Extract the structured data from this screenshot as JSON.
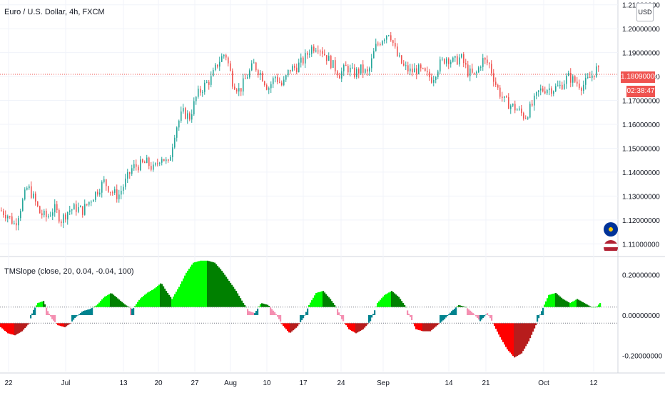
{
  "chart": {
    "title": "Euro / U.S. Dollar, 4h, FXCM",
    "currency": "USD",
    "last_price": "1.18090000",
    "countdown": "02:38:47",
    "price_ticks": [
      "1.21000000",
      "1.20000000",
      "1.19000000",
      "1.18000000",
      "1.17000000",
      "1.16000000",
      "1.15000000",
      "1.14000000",
      "1.13000000",
      "1.12000000",
      "1.11000000"
    ],
    "time_ticks": [
      "22",
      "Jul",
      "13",
      "20",
      "27",
      "Aug",
      "10",
      "17",
      "24",
      "Sep",
      "14",
      "21",
      "Oct",
      "12"
    ],
    "up_color": "#26a69a",
    "down_color": "#ef5350",
    "price_line_color": "#ef5350"
  },
  "indicator": {
    "title": "TMSlope (close, 20, 0.04, -0.04, 100)",
    "value_ticks": [
      "0.20000000",
      "0.00000000",
      "-0.20000000"
    ],
    "colors": {
      "bright_green": "#00ff00",
      "dark_green": "#008000",
      "red": "#ff0000",
      "dark_red": "#b71c1c",
      "pink": "#f48fb1",
      "teal": "#00838f"
    }
  },
  "chart_data": {
    "type": "candlestick",
    "title": "Euro / U.S. Dollar, 4h, FXCM",
    "ylim": [
      1.105,
      1.212
    ],
    "x_ticks": [
      "22",
      "Jul",
      "13",
      "20",
      "27",
      "Aug",
      "10",
      "17",
      "24",
      "Sep",
      "14",
      "21",
      "Oct",
      "12"
    ],
    "close_path": [
      [
        0,
        1.124
      ],
      [
        10,
        1.122
      ],
      [
        20,
        1.118
      ],
      [
        30,
        1.127
      ],
      [
        38,
        1.134
      ],
      [
        45,
        1.13
      ],
      [
        55,
        1.123
      ],
      [
        65,
        1.121
      ],
      [
        75,
        1.125
      ],
      [
        85,
        1.12
      ],
      [
        95,
        1.124
      ],
      [
        105,
        1.125
      ],
      [
        115,
        1.124
      ],
      [
        125,
        1.128
      ],
      [
        135,
        1.132
      ],
      [
        145,
        1.136
      ],
      [
        155,
        1.132
      ],
      [
        165,
        1.13
      ],
      [
        175,
        1.136
      ],
      [
        185,
        1.142
      ],
      [
        195,
        1.143
      ],
      [
        205,
        1.144
      ],
      [
        215,
        1.141
      ],
      [
        225,
        1.147
      ],
      [
        235,
        1.143
      ],
      [
        245,
        1.158
      ],
      [
        255,
        1.165
      ],
      [
        265,
        1.163
      ],
      [
        275,
        1.172
      ],
      [
        285,
        1.176
      ],
      [
        295,
        1.179
      ],
      [
        305,
        1.186
      ],
      [
        315,
        1.19
      ],
      [
        325,
        1.178
      ],
      [
        335,
        1.174
      ],
      [
        345,
        1.18
      ],
      [
        355,
        1.185
      ],
      [
        365,
        1.181
      ],
      [
        375,
        1.175
      ],
      [
        385,
        1.18
      ],
      [
        395,
        1.176
      ],
      [
        405,
        1.183
      ],
      [
        415,
        1.184
      ],
      [
        425,
        1.187
      ],
      [
        435,
        1.192
      ],
      [
        445,
        1.193
      ],
      [
        455,
        1.189
      ],
      [
        465,
        1.185
      ],
      [
        475,
        1.181
      ],
      [
        485,
        1.184
      ],
      [
        495,
        1.181
      ],
      [
        505,
        1.183
      ],
      [
        515,
        1.181
      ],
      [
        525,
        1.192
      ],
      [
        535,
        1.196
      ],
      [
        545,
        1.199
      ],
      [
        555,
        1.189
      ],
      [
        565,
        1.184
      ],
      [
        575,
        1.182
      ],
      [
        585,
        1.183
      ],
      [
        595,
        1.181
      ],
      [
        605,
        1.179
      ],
      [
        615,
        1.185
      ],
      [
        625,
        1.188
      ],
      [
        635,
        1.186
      ],
      [
        645,
        1.188
      ],
      [
        655,
        1.182
      ],
      [
        665,
        1.18
      ],
      [
        675,
        1.187
      ],
      [
        685,
        1.185
      ],
      [
        695,
        1.176
      ],
      [
        705,
        1.17
      ],
      [
        715,
        1.168
      ],
      [
        725,
        1.166
      ],
      [
        735,
        1.163
      ],
      [
        745,
        1.168
      ],
      [
        755,
        1.174
      ],
      [
        765,
        1.175
      ],
      [
        775,
        1.175
      ],
      [
        785,
        1.176
      ],
      [
        795,
        1.18
      ],
      [
        805,
        1.178
      ],
      [
        815,
        1.176
      ],
      [
        825,
        1.179
      ],
      [
        835,
        1.183
      ],
      [
        840,
        1.181
      ]
    ],
    "indicator_series": {
      "name": "TMSlope (close, 20, 0.04, -0.04, 100)",
      "upper_level": 0.04,
      "lower_level": -0.04,
      "ylim": [
        -0.28,
        0.28
      ],
      "points": [
        [
          0,
          -0.06
        ],
        [
          10,
          -0.09
        ],
        [
          20,
          -0.1
        ],
        [
          30,
          -0.08
        ],
        [
          40,
          -0.04
        ],
        [
          45,
          0.02
        ],
        [
          52,
          0.06
        ],
        [
          60,
          0.07
        ],
        [
          66,
          0.02
        ],
        [
          72,
          -0.02
        ],
        [
          80,
          -0.05
        ],
        [
          90,
          -0.06
        ],
        [
          98,
          -0.04
        ],
        [
          105,
          -0.01
        ],
        [
          115,
          0.02
        ],
        [
          125,
          0.03
        ],
        [
          135,
          0.05
        ],
        [
          145,
          0.09
        ],
        [
          155,
          0.11
        ],
        [
          165,
          0.08
        ],
        [
          175,
          0.05
        ],
        [
          185,
          0.03
        ],
        [
          195,
          0.08
        ],
        [
          205,
          0.11
        ],
        [
          215,
          0.13
        ],
        [
          225,
          0.16
        ],
        [
          232,
          0.12
        ],
        [
          240,
          0.08
        ],
        [
          250,
          0.14
        ],
        [
          260,
          0.21
        ],
        [
          270,
          0.26
        ],
        [
          280,
          0.27
        ],
        [
          290,
          0.27
        ],
        [
          300,
          0.26
        ],
        [
          310,
          0.22
        ],
        [
          320,
          0.17
        ],
        [
          330,
          0.12
        ],
        [
          340,
          0.06
        ],
        [
          348,
          0.02
        ],
        [
          356,
          0.01
        ],
        [
          365,
          0.06
        ],
        [
          375,
          0.05
        ],
        [
          385,
          0.01
        ],
        [
          395,
          -0.05
        ],
        [
          405,
          -0.09
        ],
        [
          415,
          -0.06
        ],
        [
          425,
          -0.01
        ],
        [
          432,
          0.05
        ],
        [
          442,
          0.11
        ],
        [
          452,
          0.12
        ],
        [
          462,
          0.08
        ],
        [
          472,
          0.03
        ],
        [
          478,
          -0.02
        ],
        [
          488,
          -0.07
        ],
        [
          498,
          -0.09
        ],
        [
          508,
          -0.07
        ],
        [
          518,
          -0.03
        ],
        [
          528,
          0.06
        ],
        [
          538,
          0.1
        ],
        [
          548,
          0.12
        ],
        [
          558,
          0.09
        ],
        [
          568,
          0.04
        ],
        [
          574,
          -0.01
        ],
        [
          582,
          -0.07
        ],
        [
          592,
          -0.08
        ],
        [
          602,
          -0.08
        ],
        [
          612,
          -0.05
        ],
        [
          622,
          -0.02
        ],
        [
          632,
          0.02
        ],
        [
          642,
          0.05
        ],
        [
          652,
          0.04
        ],
        [
          662,
          0.01
        ],
        [
          672,
          -0.03
        ],
        [
          682,
          0.01
        ],
        [
          690,
          -0.04
        ],
        [
          700,
          -0.11
        ],
        [
          710,
          -0.17
        ],
        [
          720,
          -0.21
        ],
        [
          730,
          -0.19
        ],
        [
          740,
          -0.13
        ],
        [
          750,
          -0.05
        ],
        [
          758,
          0.02
        ],
        [
          768,
          0.1
        ],
        [
          778,
          0.11
        ],
        [
          788,
          0.08
        ],
        [
          798,
          0.06
        ],
        [
          808,
          0.08
        ],
        [
          818,
          0.06
        ],
        [
          828,
          0.04
        ],
        [
          835,
          0.04
        ],
        [
          840,
          0.06
        ]
      ]
    }
  }
}
